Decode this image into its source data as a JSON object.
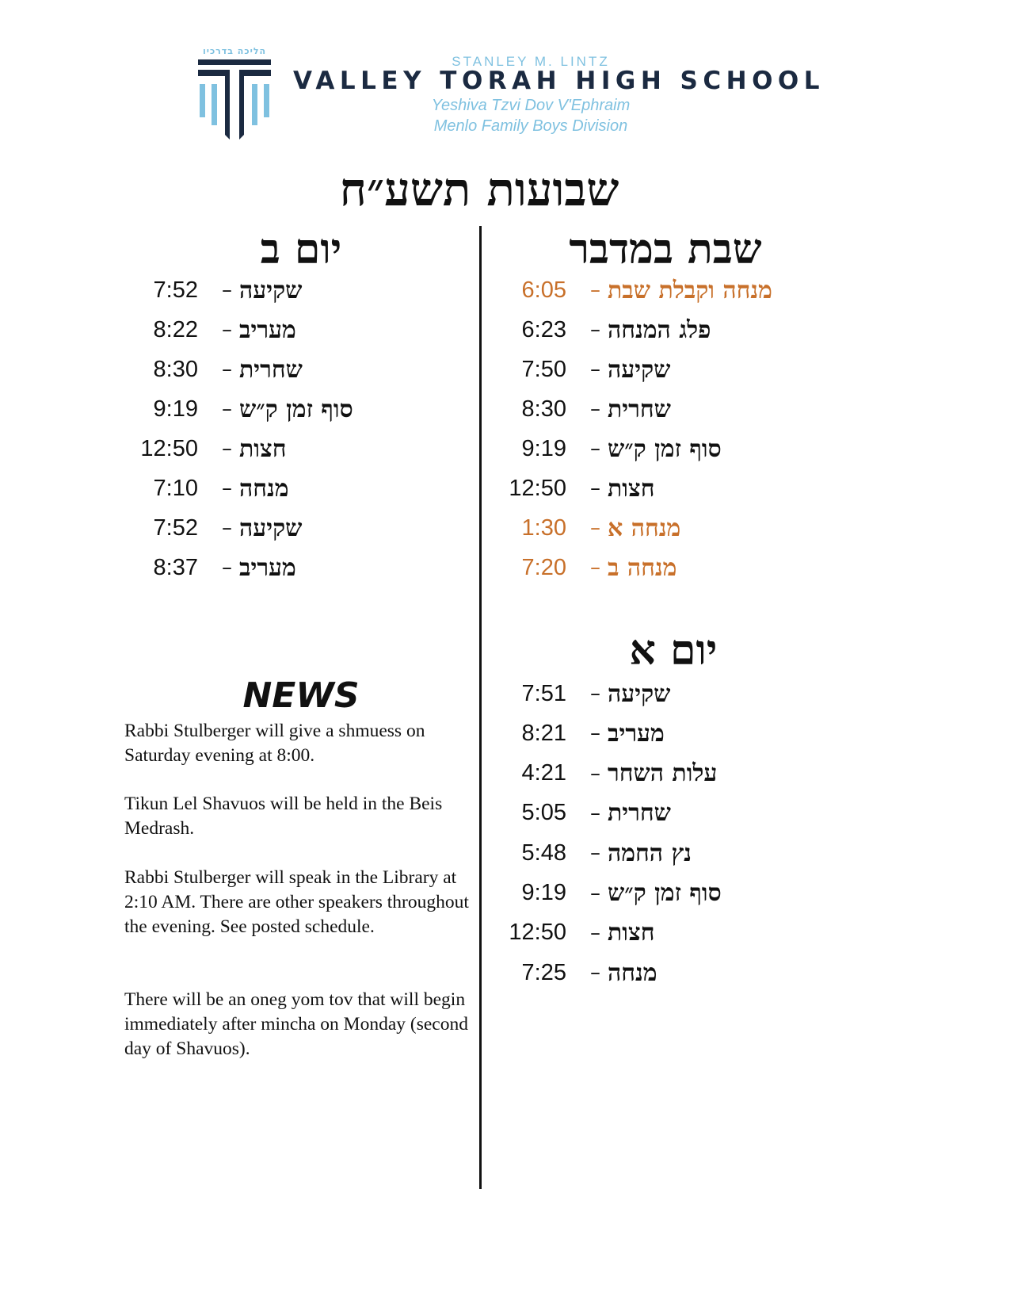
{
  "header": {
    "logo_hebrew": "הליכה בדרכיו",
    "pre_title": "STANLEY M. LINTZ",
    "school_name": "VALLEY TORAH HIGH SCHOOL",
    "subtitle1": "Yeshiva Tzvi Dov V'Ephraim",
    "subtitle2": "Menlo Family Boys Division"
  },
  "title": "שבועות תשע״ח",
  "colors": {
    "highlight": "#c8702a",
    "navy": "#1b2a41",
    "light_blue": "#7fc1e0"
  },
  "shabbos": {
    "heading": "שבת במדבר",
    "rows": [
      {
        "time": "6:05",
        "label": "מנחה וקבלת שבת",
        "highlight": true
      },
      {
        "time": "6:23",
        "label": "פלג המנחה",
        "highlight": false
      },
      {
        "time": "7:50",
        "label": "שקיעה",
        "highlight": false
      },
      {
        "time": "8:30",
        "label": "שחרית",
        "highlight": false
      },
      {
        "time": "9:19",
        "label": "סוף זמן ק״ש",
        "highlight": false
      },
      {
        "time": "12:50",
        "label": "חצות",
        "highlight": false
      },
      {
        "time": "1:30",
        "label": "מנחה א",
        "highlight": true
      },
      {
        "time": "7:20",
        "label": "מנחה ב",
        "highlight": true
      }
    ]
  },
  "yom_alef": {
    "heading": "יום א",
    "rows": [
      {
        "time": "7:51",
        "label": "שקיעה"
      },
      {
        "time": "8:21",
        "label": "מעריב"
      },
      {
        "time": "4:21",
        "label": "עלות השחר"
      },
      {
        "time": "5:05",
        "label": "שחרית"
      },
      {
        "time": "5:48",
        "label": "נץ החמה"
      },
      {
        "time": "9:19",
        "label": "סוף זמן ק״ש"
      },
      {
        "time": "12:50",
        "label": "חצות"
      },
      {
        "time": "7:25",
        "label": "מנחה"
      }
    ]
  },
  "yom_beis": {
    "heading": "יום ב",
    "rows": [
      {
        "time": "7:52",
        "label": "שקיעה"
      },
      {
        "time": "8:22",
        "label": "מעריב"
      },
      {
        "time": "8:30",
        "label": "שחרית"
      },
      {
        "time": "9:19",
        "label": "סוף זמן ק״ש"
      },
      {
        "time": "12:50",
        "label": "חצות"
      },
      {
        "time": "7:10",
        "label": "מנחה"
      },
      {
        "time": "7:52",
        "label": "שקיעה"
      },
      {
        "time": "8:37",
        "label": "מעריב"
      }
    ]
  },
  "dash": "–",
  "news": {
    "heading": "NEWS",
    "items": [
      "Rabbi Stulberger will give a shmuess on Saturday evening at 8:00.",
      "Tikun Lel Shavuos will be held in the Beis Medrash.",
      "Rabbi Stulberger will speak in the Library at 2:10 AM. There are other speakers throughout the evening. See posted schedule.",
      "There will be an oneg yom tov that will begin immediately after mincha on Monday (second day of Shavuos)."
    ]
  }
}
